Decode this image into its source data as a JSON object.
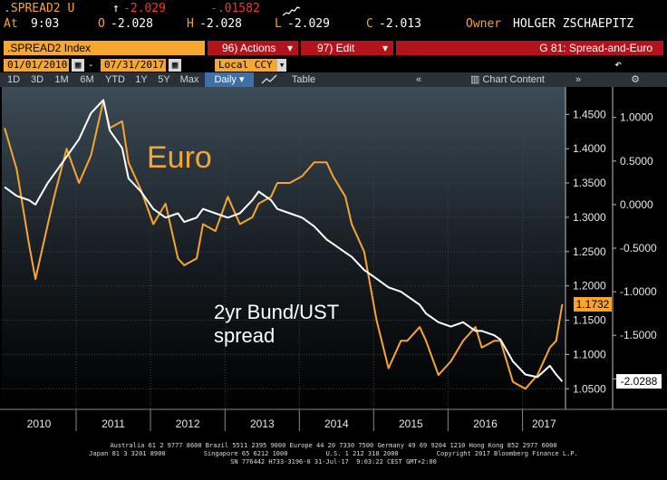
{
  "header": {
    "ticker": ".SPREAD2 U",
    "change_arrow": "↑",
    "last": "-2.029",
    "change": "-.01582",
    "at_label": "At",
    "time": "9:03",
    "open_label": "O",
    "open": "-2.028",
    "high_label": "H",
    "high": "-2.028",
    "low_label": "L",
    "low": "-2.029",
    "close_label": "C",
    "close": "-2.013",
    "owner_label": "Owner",
    "owner": "HOLGER ZSCHAEPITZ"
  },
  "toolbar": {
    "index_label": ".SPREAD2 Index",
    "actions_label": "96) Actions",
    "edit_label": "97) Edit",
    "graph_label": "G 81: Spread-and-Euro",
    "start_date": "01/01/2010",
    "end_date": "07/31/2017",
    "currency": "Local CCY",
    "periods": [
      "1D",
      "3D",
      "1M",
      "6M",
      "YTD",
      "1Y",
      "5Y",
      "Max"
    ],
    "frequency": "Daily",
    "table_label": "Table",
    "chart_content_label": "Chart Content"
  },
  "colors": {
    "euro": "#f7a52e",
    "spread": "#ffffff",
    "accent_red": "#b3131b",
    "background": "#000000"
  },
  "chart_data": {
    "type": "line",
    "title": "",
    "annotations": [
      "Euro",
      "2yr Bund/UST spread"
    ],
    "x_axis": {
      "ticks": [
        "2010",
        "2011",
        "2012",
        "2013",
        "2014",
        "2015",
        "2016",
        "2017"
      ],
      "range": [
        "2010-01-01",
        "2017-07-31"
      ]
    },
    "y_left": {
      "series": "Euro",
      "ticks": [
        "1.4500",
        "1.4000",
        "1.3500",
        "1.3000",
        "1.2500",
        "1.2000",
        "1.1500",
        "1.1000",
        "1.0500"
      ],
      "range": [
        1.02,
        1.49
      ]
    },
    "y_right": {
      "series": "2yr Bund/UST spread",
      "ticks": [
        "1.0000",
        "0.5000",
        "0.0000",
        "-0.5000",
        "-1.0000",
        "-1.5000",
        "-2.0000"
      ],
      "range": [
        -2.35,
        1.35
      ]
    },
    "last_labels": {
      "euro": "1.1732",
      "spread": "-2.0288"
    },
    "grid": true,
    "series": [
      {
        "name": "Euro",
        "axis": "left",
        "x": [
          "2010-01",
          "2010-03",
          "2010-05",
          "2010-06",
          "2010-08",
          "2010-09",
          "2010-11",
          "2011-01",
          "2011-03",
          "2011-05",
          "2011-06",
          "2011-08",
          "2011-09",
          "2011-11",
          "2012-01",
          "2012-03",
          "2012-05",
          "2012-06",
          "2012-08",
          "2012-09",
          "2012-11",
          "2013-01",
          "2013-03",
          "2013-05",
          "2013-06",
          "2013-08",
          "2013-09",
          "2013-11",
          "2014-01",
          "2014-03",
          "2014-05",
          "2014-06",
          "2014-08",
          "2014-09",
          "2014-11",
          "2015-01",
          "2015-03",
          "2015-05",
          "2015-06",
          "2015-08",
          "2015-09",
          "2015-11",
          "2016-01",
          "2016-03",
          "2016-05",
          "2016-06",
          "2016-08",
          "2016-09",
          "2016-11",
          "2017-01",
          "2017-03",
          "2017-05",
          "2017-06",
          "2017-07"
        ],
        "values": [
          1.43,
          1.37,
          1.26,
          1.21,
          1.29,
          1.33,
          1.4,
          1.35,
          1.39,
          1.47,
          1.43,
          1.44,
          1.38,
          1.34,
          1.29,
          1.32,
          1.24,
          1.23,
          1.24,
          1.29,
          1.28,
          1.33,
          1.29,
          1.3,
          1.32,
          1.33,
          1.35,
          1.35,
          1.36,
          1.38,
          1.38,
          1.36,
          1.33,
          1.29,
          1.25,
          1.15,
          1.08,
          1.12,
          1.12,
          1.14,
          1.12,
          1.07,
          1.09,
          1.12,
          1.14,
          1.11,
          1.12,
          1.12,
          1.06,
          1.05,
          1.07,
          1.11,
          1.12,
          1.1732
        ]
      },
      {
        "name": "2yr Bund/UST spread",
        "axis": "right",
        "x": [
          "2010-01",
          "2010-03",
          "2010-05",
          "2010-06",
          "2010-08",
          "2010-09",
          "2010-11",
          "2011-01",
          "2011-03",
          "2011-05",
          "2011-06",
          "2011-08",
          "2011-09",
          "2011-11",
          "2012-01",
          "2012-03",
          "2012-05",
          "2012-06",
          "2012-08",
          "2012-09",
          "2012-11",
          "2013-01",
          "2013-03",
          "2013-05",
          "2013-06",
          "2013-08",
          "2013-09",
          "2013-11",
          "2014-01",
          "2014-03",
          "2014-05",
          "2014-06",
          "2014-08",
          "2014-09",
          "2014-11",
          "2015-01",
          "2015-03",
          "2015-05",
          "2015-06",
          "2015-08",
          "2015-09",
          "2015-11",
          "2016-01",
          "2016-03",
          "2016-05",
          "2016-06",
          "2016-08",
          "2016-09",
          "2016-11",
          "2017-01",
          "2017-03",
          "2017-05",
          "2017-06",
          "2017-07"
        ],
        "values": [
          0.2,
          0.1,
          0.05,
          0.0,
          0.25,
          0.35,
          0.55,
          0.75,
          1.05,
          1.2,
          0.85,
          0.65,
          0.3,
          0.15,
          -0.05,
          -0.15,
          -0.1,
          -0.2,
          -0.15,
          -0.05,
          -0.1,
          -0.15,
          -0.1,
          0.05,
          0.15,
          0.05,
          -0.05,
          -0.1,
          -0.15,
          -0.25,
          -0.4,
          -0.45,
          -0.55,
          -0.6,
          -0.75,
          -0.85,
          -0.95,
          -1.0,
          -1.05,
          -1.15,
          -1.25,
          -1.35,
          -1.4,
          -1.35,
          -1.45,
          -1.45,
          -1.5,
          -1.55,
          -1.8,
          -1.95,
          -1.98,
          -1.85,
          -1.95,
          -2.0288
        ]
      }
    ]
  },
  "footer": {
    "line1": "Australia 61 2 9777 8600 Brazil 5511 2395 9000 Europe 44 20 7330 7500 Germany 49 69 9204 1210 Hong Kong 852 2977 6000",
    "line2": "Japan 81 3 3201 8900          Singapore 65 6212 1000          U.S. 1 212 318 2000          Copyright 2017 Bloomberg Finance L.P.",
    "line3": "SN 776442 H733-3196-0 31-Jul-17  9:03:22 CEST GMT+2:00"
  }
}
